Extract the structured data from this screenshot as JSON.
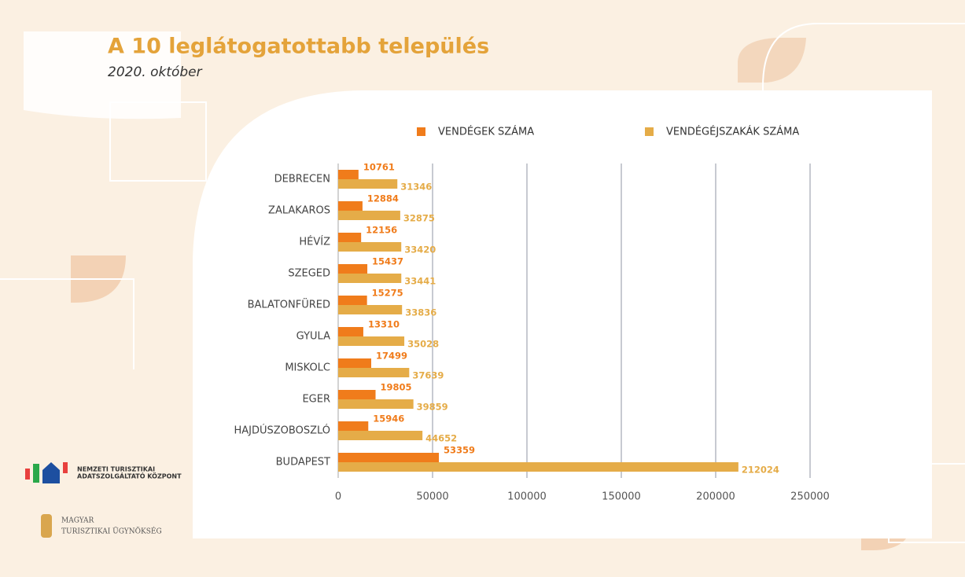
{
  "chart_data": {
    "type": "hbar",
    "title": "A 10 leglátogatottabb település",
    "subtitle": "2020. október",
    "categories": [
      "DEBRECEN",
      "ZALAKAROS",
      "HÉVÍZ",
      "SZEGED",
      "BALATONFÜRED",
      "GYULA",
      "MISKOLC",
      "EGER",
      "HAJDÚSZOBOSZLÓ",
      "BUDAPEST"
    ],
    "series": [
      {
        "name": "VENDÉGEK SZÁMA",
        "color": "#f07c1b",
        "values": [
          10761,
          12884,
          12156,
          15437,
          15275,
          13310,
          17499,
          19805,
          15946,
          53359
        ]
      },
      {
        "name": "VENDÉGÉJSZAKÁK SZÁMA",
        "color": "#e5ac48",
        "values": [
          31346,
          32875,
          33420,
          33441,
          33836,
          35028,
          37639,
          39859,
          44652,
          212024
        ]
      }
    ],
    "xlim": [
      0,
      250000
    ],
    "xticks": [
      0,
      50000,
      100000,
      150000,
      200000,
      250000
    ],
    "grid": true,
    "legend": "top"
  },
  "logos": {
    "ntak": [
      "NEMZETI TURISZTIKAI",
      "ADATSZOLGÁLTATÓ KÖZPONT"
    ],
    "mtu": [
      "MAGYAR",
      "TURISZTIKAI ÜGYNÖKSÉG"
    ]
  }
}
